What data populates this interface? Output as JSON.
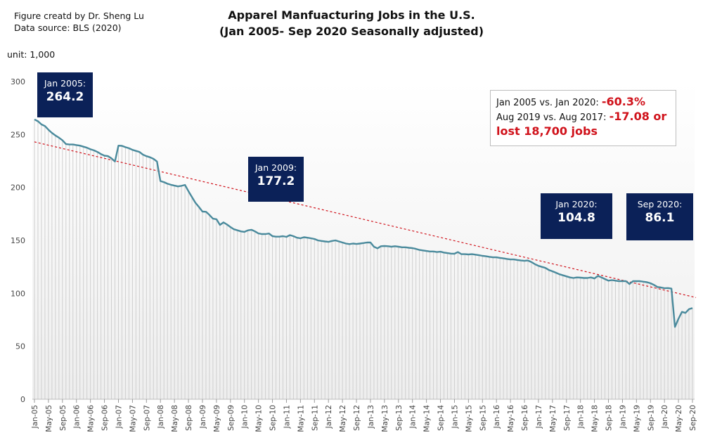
{
  "header": {
    "credit_line1": "Figure creatd by Dr. Sheng Lu",
    "credit_line2": "Data source: BLS (2020)",
    "title_line1": "Apparel Manfuacturing Jobs in the U.S.",
    "title_line2": "(Jan 2005- Sep 2020 Seasonally adjusted)",
    "unit": "unit: 1,000"
  },
  "callouts": [
    {
      "label": "Jan 2005:",
      "value": "264.2"
    },
    {
      "label": "Jan 2009:",
      "value": "177.2"
    },
    {
      "label": "Jan 2020:",
      "value": "104.8"
    },
    {
      "label": "Sep 2020:",
      "value": "86.1"
    }
  ],
  "statbox": {
    "line1_label": "Jan 2005 vs. Jan 2020: ",
    "line1_value": "-60.3%",
    "line2_label": "Aug 2019 vs. Aug 2017: ",
    "line2_value": "-17.08 or",
    "line3_value": "lost 18,700 jobs"
  },
  "colors": {
    "line": "#4a8a9c",
    "trend": "#d0121b",
    "callout_bg": "#0b2158",
    "highlight": "#d0121b"
  },
  "chart_data": {
    "type": "line",
    "title": "Apparel Manfuacturing Jobs in the U.S. (Jan 2005- Sep 2020 Seasonally adjusted)",
    "xlabel": "",
    "ylabel": "unit: 1,000",
    "ylim": [
      0,
      300
    ],
    "yticks": [
      0,
      50,
      100,
      150,
      200,
      250,
      300
    ],
    "grid": "vertical drop lines per month",
    "legend": "none",
    "x_start": "Jan-05",
    "x_end": "Sep-20",
    "xtick_labels": [
      "Jan-05",
      "May-05",
      "Sep-05",
      "Jan-06",
      "May-06",
      "Sep-06",
      "Jan-07",
      "May-07",
      "Sep-07",
      "Jan-08",
      "May-08",
      "Sep-08",
      "Jan-09",
      "May-09",
      "Sep-09",
      "Jan-10",
      "May-10",
      "Sep-10",
      "Jan-11",
      "May-11",
      "Sep-11",
      "Jan-12",
      "May-12",
      "Sep-12",
      "Jan-13",
      "May-13",
      "Sep-13",
      "Jan-14",
      "May-14",
      "Sep-14",
      "Jan-15",
      "May-15",
      "Sep-15",
      "Jan-16",
      "May-16",
      "Sep-16",
      "Jan-17",
      "May-17",
      "Sep-17",
      "Jan-18",
      "May-18",
      "Sep-18",
      "Jan-19",
      "May-19",
      "Sep-19",
      "Jan-20",
      "May-20",
      "Sep-20"
    ],
    "series": [
      {
        "name": "Apparel manufacturing jobs",
        "values": [
          264.2,
          262.5,
          259.5,
          258.0,
          254.5,
          251.5,
          249.0,
          247.0,
          244.5,
          241.0,
          240.5,
          240.5,
          240.0,
          239.5,
          238.5,
          237.5,
          236.0,
          235.0,
          233.5,
          231.5,
          230.0,
          229.6,
          227.5,
          224.5,
          239.5,
          239.3,
          238.0,
          237.0,
          235.5,
          234.5,
          233.5,
          231.0,
          229.5,
          228.5,
          227.0,
          224.5,
          206.0,
          205.0,
          203.5,
          202.5,
          201.7,
          201.0,
          201.5,
          202.4,
          196.4,
          191.0,
          185.5,
          181.5,
          177.2,
          177.0,
          174.0,
          170.5,
          170.0,
          164.6,
          167.0,
          165.0,
          162.6,
          160.5,
          159.5,
          158.5,
          158.0,
          159.5,
          160.0,
          158.5,
          156.6,
          156.0,
          156.0,
          156.5,
          154.0,
          153.5,
          153.5,
          154.0,
          153.3,
          155.0,
          154.0,
          152.5,
          152.0,
          153.0,
          152.5,
          152.0,
          151.3,
          150.0,
          149.5,
          149.0,
          148.6,
          149.5,
          150.0,
          149.0,
          148.0,
          147.0,
          146.5,
          147.0,
          146.6,
          147.0,
          147.5,
          148.0,
          148.0,
          144.0,
          142.5,
          144.5,
          144.7,
          144.5,
          144.0,
          144.5,
          144.0,
          143.5,
          143.5,
          143.0,
          142.7,
          142.0,
          141.0,
          140.5,
          140.0,
          139.5,
          139.5,
          139.0,
          139.3,
          138.5,
          138.0,
          137.5,
          137.4,
          139.0,
          137.0,
          137.0,
          136.7,
          137.0,
          136.5,
          136.0,
          135.4,
          135.0,
          134.5,
          134.0,
          134.0,
          133.5,
          133.0,
          132.5,
          132.0,
          132.0,
          131.5,
          131.0,
          130.7,
          131.0,
          129.5,
          127.5,
          126.0,
          125.0,
          124.0,
          122.0,
          120.8,
          119.5,
          118.0,
          117.0,
          116.0,
          115.0,
          114.5,
          115.0,
          114.8,
          114.5,
          114.5,
          115.0,
          114.0,
          116.5,
          115.0,
          113.5,
          112.0,
          112.5,
          112.0,
          111.5,
          111.5,
          111.5,
          108.8,
          111.5,
          111.5,
          111.5,
          111.0,
          110.5,
          109.5,
          108.0,
          106.0,
          105.5,
          104.8,
          105.0,
          104.5,
          68.3,
          76.0,
          82.5,
          81.5,
          85.0,
          86.1
        ]
      },
      {
        "name": "Linear trend",
        "style": "dashed",
        "values_start_end": [
          243.0,
          96.0
        ]
      }
    ],
    "annotations": [
      {
        "x": "Jan-05",
        "text": "Jan 2005: 264.2"
      },
      {
        "x": "Jan-09",
        "text": "Jan 2009: 177.2"
      },
      {
        "x": "Jan-20",
        "text": "Jan 2020: 104.8"
      },
      {
        "x": "Sep-20",
        "text": "Sep 2020: 86.1"
      },
      {
        "text": "Jan 2005 vs. Jan 2020: -60.3%"
      },
      {
        "text": "Aug 2019 vs. Aug 2017: -17.08 or lost 18,700 jobs"
      }
    ]
  }
}
